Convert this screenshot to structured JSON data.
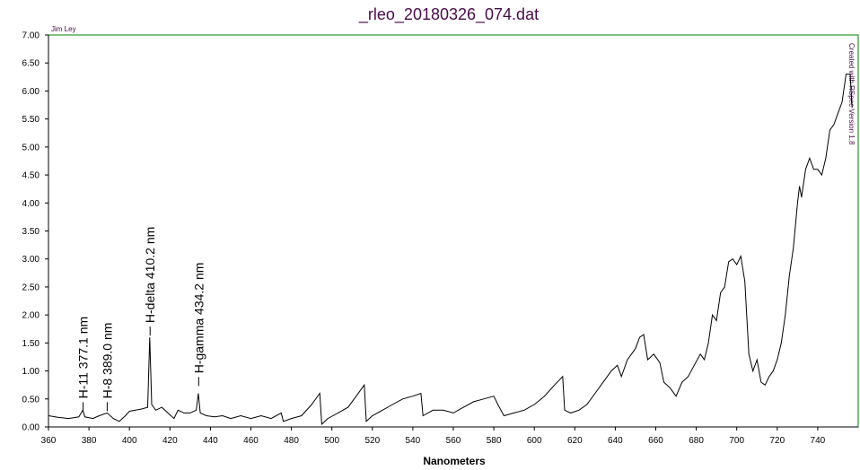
{
  "chart_data": {
    "type": "line",
    "title": "_rleo_20180326_074.dat",
    "xlabel": "Nanometers",
    "author": "Jim Ley",
    "credit": "Created with RSpec Version 1.8",
    "color": "#000000",
    "xlim": [
      360,
      760
    ],
    "ylim": [
      0,
      7
    ],
    "xticks": [
      360,
      380,
      400,
      420,
      440,
      460,
      480,
      500,
      520,
      540,
      560,
      580,
      600,
      620,
      640,
      660,
      680,
      700,
      720,
      740
    ],
    "yticks": [
      {
        "value": 0,
        "label": "0.00"
      },
      {
        "value": 0.5,
        "label": "0.50"
      },
      {
        "value": 1,
        "label": "1.00"
      },
      {
        "value": 1.5,
        "label": "1.50"
      },
      {
        "value": 2,
        "label": "2.00"
      },
      {
        "value": 2.5,
        "label": "2.50"
      },
      {
        "value": 3,
        "label": "3.00"
      },
      {
        "value": 3.5,
        "label": "3.50"
      },
      {
        "value": 4,
        "label": "4.00"
      },
      {
        "value": 4.5,
        "label": "4.50"
      },
      {
        "value": 5,
        "label": "5.00"
      },
      {
        "value": 5.5,
        "label": "5.50"
      },
      {
        "value": 6,
        "label": "6.00"
      },
      {
        "value": 6.5,
        "label": "6.50"
      },
      {
        "value": 7,
        "label": "7.00"
      }
    ],
    "x": [
      360,
      365,
      370,
      375,
      377,
      378,
      382,
      385,
      389,
      392,
      395,
      398,
      400,
      403,
      406,
      409,
      410,
      411,
      413,
      416,
      419,
      422,
      424,
      427,
      430,
      433,
      434,
      435,
      438,
      442,
      446,
      450,
      455,
      460,
      465,
      470,
      475,
      476,
      480,
      485,
      490,
      494,
      495,
      498,
      503,
      508,
      512,
      516,
      517,
      520,
      525,
      530,
      535,
      540,
      544,
      545,
      550,
      555,
      560,
      565,
      570,
      575,
      580,
      582,
      585,
      590,
      595,
      600,
      605,
      610,
      614,
      615,
      618,
      622,
      626,
      630,
      634,
      638,
      641,
      643,
      646,
      650,
      652,
      654,
      656,
      659,
      662,
      664,
      667,
      670,
      673,
      676,
      679,
      682,
      684,
      686,
      688,
      690,
      692,
      694,
      696,
      698,
      700,
      702,
      704,
      706,
      708,
      710,
      712,
      714,
      716,
      718,
      720,
      722,
      724,
      726,
      728,
      730,
      731,
      732,
      734,
      736,
      738,
      740,
      742,
      744,
      746,
      748,
      750,
      752,
      754,
      756,
      757
    ],
    "values": [
      0.2,
      0.17,
      0.15,
      0.18,
      0.3,
      0.18,
      0.15,
      0.2,
      0.25,
      0.15,
      0.1,
      0.2,
      0.28,
      0.3,
      0.32,
      0.35,
      1.6,
      0.4,
      0.3,
      0.35,
      0.25,
      0.15,
      0.3,
      0.25,
      0.25,
      0.3,
      0.6,
      0.25,
      0.2,
      0.18,
      0.2,
      0.15,
      0.2,
      0.15,
      0.2,
      0.15,
      0.25,
      0.1,
      0.15,
      0.2,
      0.4,
      0.6,
      0.05,
      0.15,
      0.25,
      0.35,
      0.55,
      0.75,
      0.1,
      0.2,
      0.3,
      0.4,
      0.5,
      0.55,
      0.6,
      0.2,
      0.3,
      0.3,
      0.25,
      0.35,
      0.45,
      0.5,
      0.55,
      0.4,
      0.2,
      0.25,
      0.3,
      0.4,
      0.55,
      0.75,
      0.9,
      0.3,
      0.25,
      0.3,
      0.4,
      0.6,
      0.8,
      1.0,
      1.1,
      0.9,
      1.2,
      1.4,
      1.6,
      1.65,
      1.2,
      1.3,
      1.15,
      0.8,
      0.7,
      0.55,
      0.8,
      0.9,
      1.1,
      1.3,
      1.2,
      1.5,
      2.0,
      1.9,
      2.4,
      2.5,
      2.95,
      3.0,
      2.9,
      3.05,
      2.6,
      1.3,
      1.0,
      1.2,
      0.8,
      0.75,
      0.9,
      1.0,
      1.2,
      1.5,
      2.0,
      2.7,
      3.2,
      4.0,
      4.3,
      4.1,
      4.6,
      4.8,
      4.6,
      4.6,
      4.5,
      4.8,
      5.3,
      5.4,
      5.6,
      5.8,
      6.3,
      6.3,
      5.7
    ],
    "annotations": [
      {
        "text": "H-11 377.1 nm",
        "x": 377.1,
        "y": 0.25
      },
      {
        "text": "H-8 389.0 nm",
        "x": 389.0,
        "y": 0.25
      },
      {
        "text": "H-delta 410.2 nm",
        "x": 410.2,
        "y": 1.6
      },
      {
        "text": "H-gamma 434.2 nm",
        "x": 434.2,
        "y": 0.7
      }
    ]
  }
}
